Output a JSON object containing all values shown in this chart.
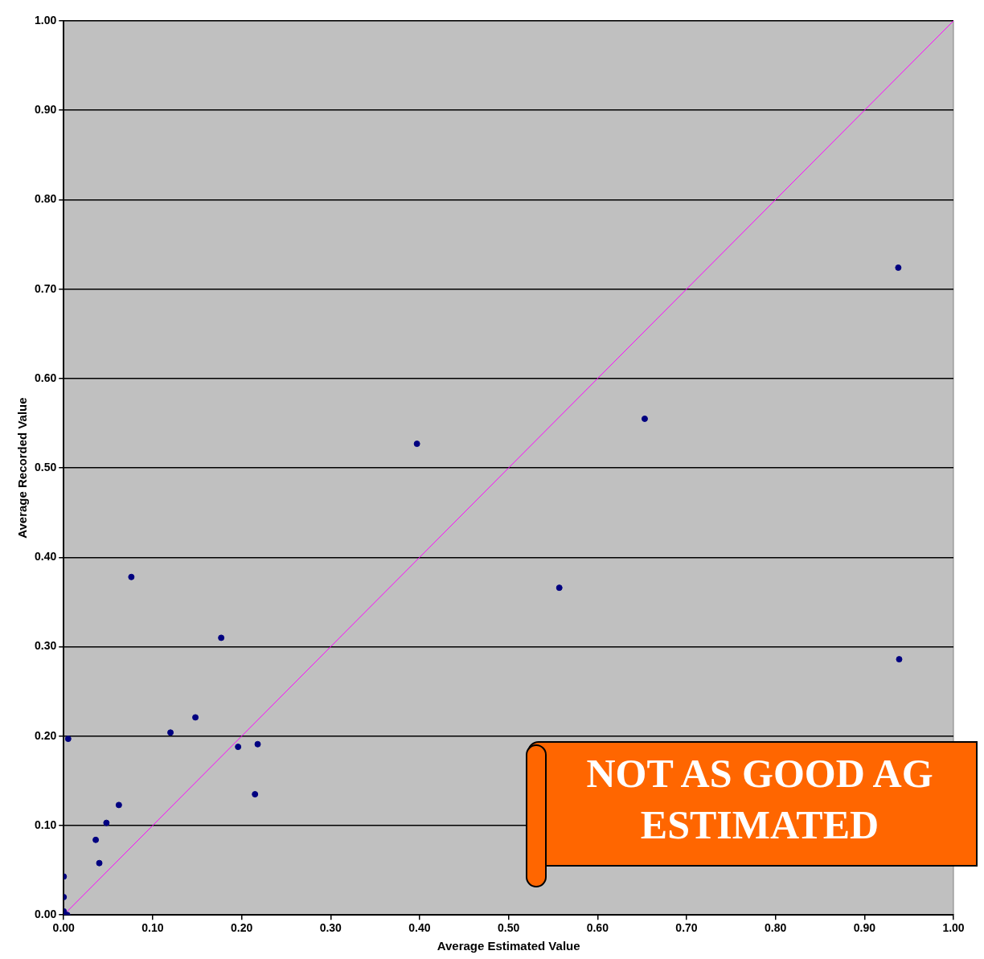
{
  "chart_data": {
    "type": "scatter",
    "xlabel": "Average Estimated Value",
    "ylabel": "Average Recorded Value",
    "xlim": [
      0,
      1
    ],
    "ylim": [
      0,
      1
    ],
    "xticks": [
      {
        "value": 0,
        "label": "0.00"
      },
      {
        "value": 0.1,
        "label": "0.10"
      },
      {
        "value": 0.2,
        "label": "0.20"
      },
      {
        "value": 0.3,
        "label": "0.30"
      },
      {
        "value": 0.4,
        "label": "0.40"
      },
      {
        "value": 0.5,
        "label": "0.50"
      },
      {
        "value": 0.6,
        "label": "0.60"
      },
      {
        "value": 0.7,
        "label": "0.70"
      },
      {
        "value": 0.8,
        "label": "0.80"
      },
      {
        "value": 0.9,
        "label": "0.90"
      },
      {
        "value": 1,
        "label": "1.00"
      }
    ],
    "yticks": [
      {
        "value": 0,
        "label": "0.00"
      },
      {
        "value": 0.1,
        "label": "0.10"
      },
      {
        "value": 0.2,
        "label": "0.20"
      },
      {
        "value": 0.3,
        "label": "0.30"
      },
      {
        "value": 0.4,
        "label": "0.40"
      },
      {
        "value": 0.5,
        "label": "0.50"
      },
      {
        "value": 0.6,
        "label": "0.60"
      },
      {
        "value": 0.7,
        "label": "0.70"
      },
      {
        "value": 0.8,
        "label": "0.80"
      },
      {
        "value": 0.9,
        "label": "0.90"
      },
      {
        "value": 1,
        "label": "1.00"
      }
    ],
    "grid": "y",
    "legend": false,
    "marker": "circle",
    "series": [
      {
        "type": "scatter",
        "color": "#000080",
        "x": [
          0.076,
          0.177,
          0.148,
          0.12,
          0.005,
          0.196,
          0.218,
          0.215,
          0.062,
          0.048,
          0.036,
          0.04,
          0.0,
          0.0,
          0.0,
          0.004,
          0.397,
          0.557,
          0.653,
          0.938,
          0.939
        ],
        "values": [
          0.378,
          0.31,
          0.221,
          0.204,
          0.197,
          0.188,
          0.191,
          0.135,
          0.123,
          0.103,
          0.084,
          0.058,
          0.043,
          0.02,
          0.004,
          0.0,
          0.527,
          0.366,
          0.555,
          0.724,
          0.286
        ]
      },
      {
        "type": "line",
        "color": "#ff00ff",
        "marker": "none",
        "line_style": "solid",
        "x": [
          0,
          1
        ],
        "values": [
          0,
          1
        ]
      }
    ],
    "annotations": [
      "NOT AS GOOD AG",
      "ESTIMATED"
    ]
  }
}
